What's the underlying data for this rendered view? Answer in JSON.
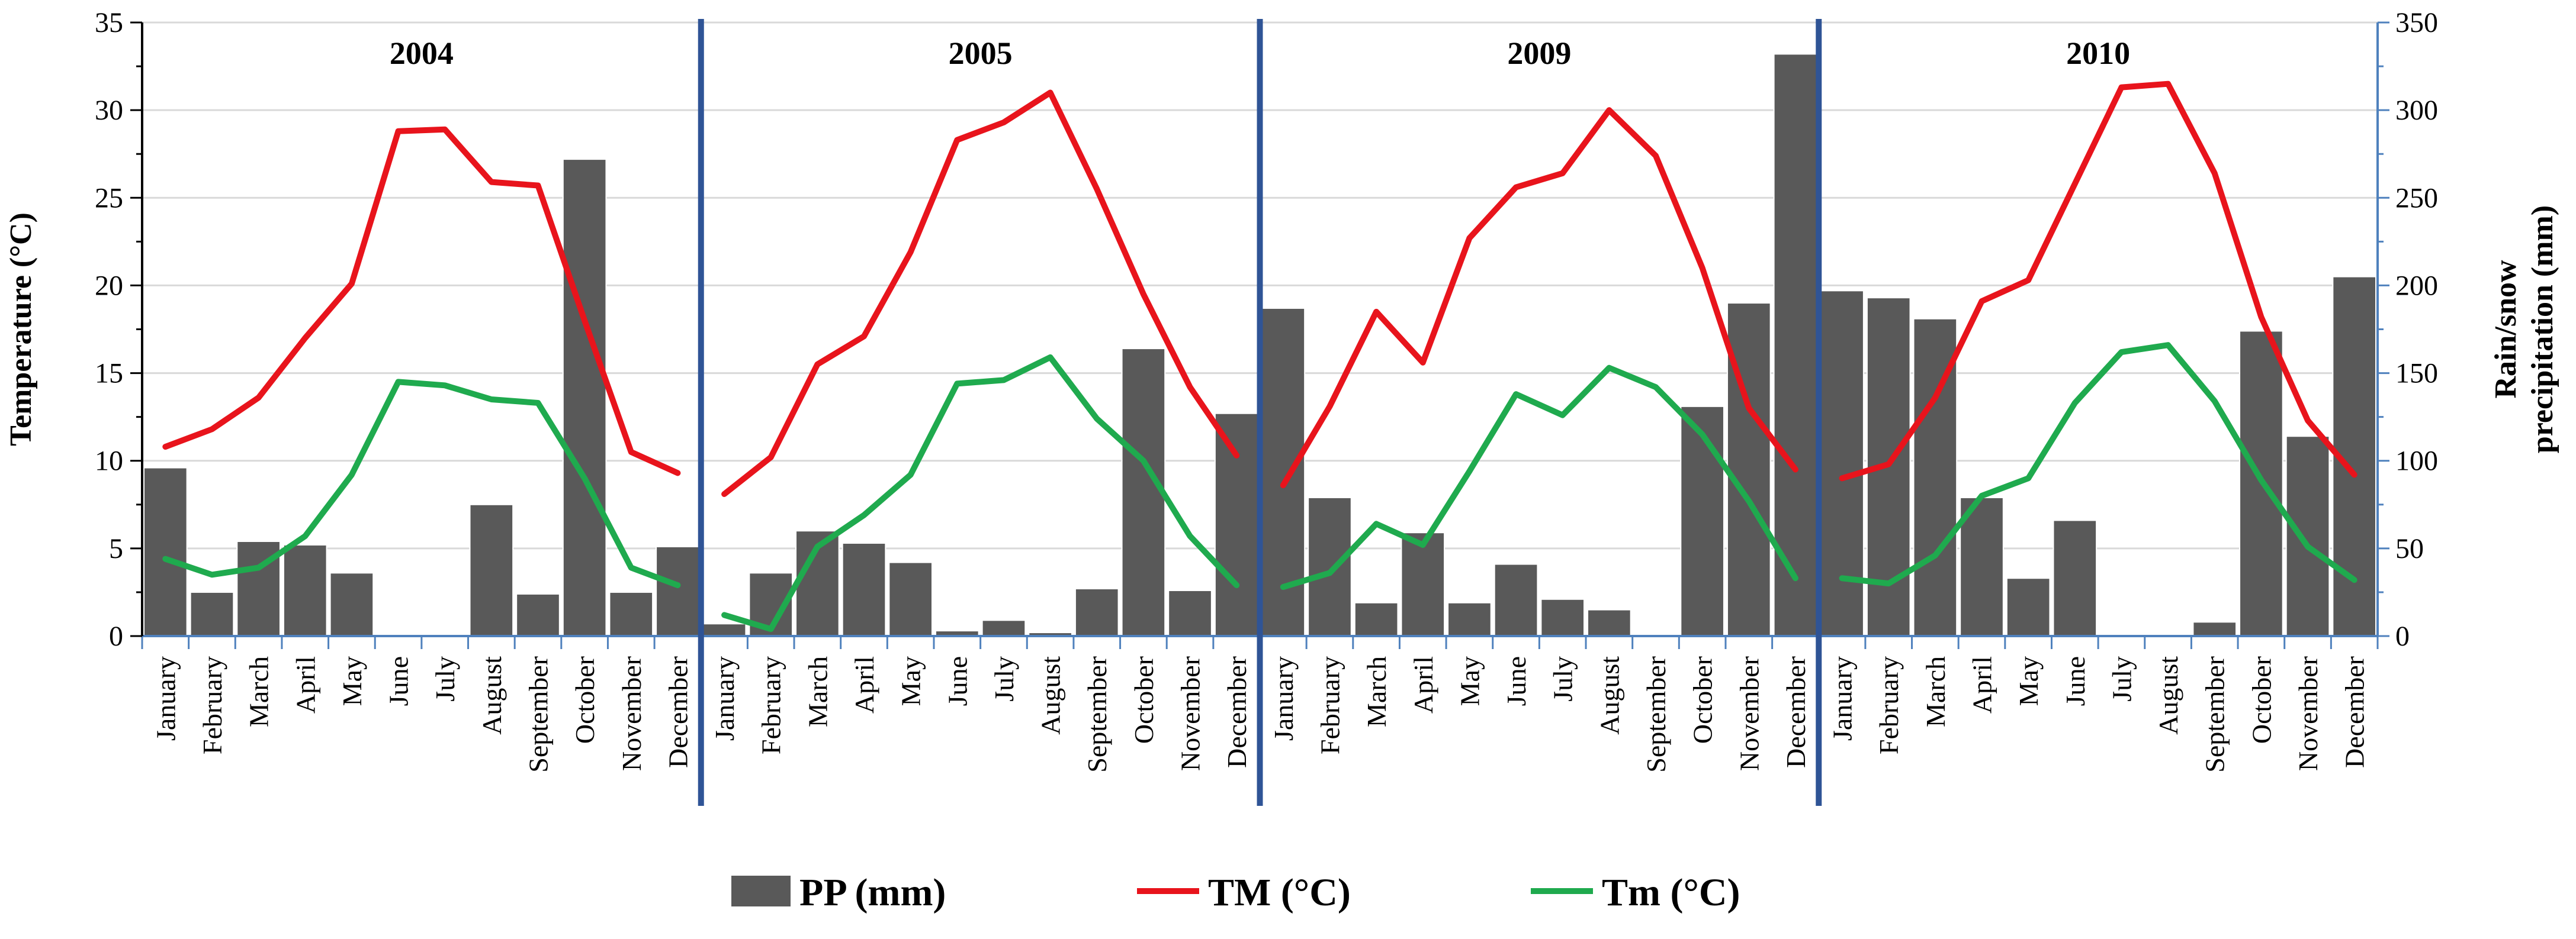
{
  "chart_data": {
    "type": "bar+line",
    "months": [
      "January",
      "February",
      "March",
      "April",
      "May",
      "June",
      "July",
      "August",
      "September",
      "October",
      "November",
      "December"
    ],
    "left_axis": {
      "label": "Temperature (°C)",
      "range": [
        0,
        35
      ],
      "ticks": [
        "0",
        "5",
        "10",
        "15",
        "20",
        "25",
        "30",
        "35"
      ]
    },
    "right_axis": {
      "label_line1": "Rain/snow",
      "label_line2": "precipitation (mm)",
      "range": [
        0,
        350
      ],
      "ticks": [
        "0",
        "50",
        "100",
        "150",
        "200",
        "250",
        "300",
        "350"
      ]
    },
    "legend": {
      "pp": "PP (mm)",
      "tmax": "TM (°C)",
      "tmin": "Tm (°C)"
    },
    "colors": {
      "pp": "#595959",
      "tmax": "#e8141c",
      "tmin": "#1faa4e",
      "axis": "#4f81bd",
      "separator": "#2f5496",
      "grid": "#d9d9d9"
    },
    "panels": [
      {
        "year": "2004",
        "pp_mm": [
          96,
          25,
          54,
          52,
          36,
          0,
          0,
          75,
          24,
          272,
          25,
          51
        ],
        "tmax_c": [
          10.8,
          11.8,
          13.6,
          17.0,
          20.1,
          28.8,
          28.9,
          25.9,
          25.7,
          18.0,
          10.5,
          9.3
        ],
        "tmin_c": [
          4.4,
          3.5,
          3.9,
          5.7,
          9.2,
          14.5,
          14.3,
          13.5,
          13.3,
          9.0,
          3.9,
          2.9
        ]
      },
      {
        "year": "2005",
        "pp_mm": [
          7,
          36,
          60,
          53,
          42,
          3,
          9,
          2,
          27,
          164,
          26,
          127
        ],
        "tmax_c": [
          8.1,
          10.2,
          15.5,
          17.1,
          21.9,
          28.3,
          29.3,
          31.0,
          25.5,
          19.5,
          14.2,
          10.3
        ],
        "tmin_c": [
          1.2,
          0.4,
          5.1,
          6.9,
          9.2,
          14.4,
          14.6,
          15.9,
          12.4,
          10.0,
          5.7,
          2.9
        ]
      },
      {
        "year": "2009",
        "pp_mm": [
          187,
          79,
          19,
          59,
          19,
          41,
          21,
          15,
          0,
          131,
          190,
          332
        ],
        "tmax_c": [
          8.6,
          13.1,
          18.5,
          15.6,
          22.7,
          25.6,
          26.4,
          30.0,
          27.4,
          21.0,
          13.0,
          9.5
        ],
        "tmin_c": [
          2.8,
          3.6,
          6.4,
          5.2,
          9.4,
          13.8,
          12.6,
          15.3,
          14.2,
          11.5,
          7.7,
          3.3
        ]
      },
      {
        "year": "2010",
        "pp_mm": [
          197,
          193,
          181,
          79,
          33,
          66,
          0,
          0,
          8,
          174,
          114,
          205
        ],
        "tmax_c": [
          9.0,
          9.8,
          13.6,
          19.1,
          20.3,
          25.8,
          31.3,
          31.5,
          26.4,
          18.2,
          12.3,
          9.2
        ],
        "tmin_c": [
          3.3,
          3.0,
          4.6,
          8.0,
          9.0,
          13.3,
          16.2,
          16.6,
          13.4,
          8.9,
          5.1,
          3.2
        ]
      }
    ]
  }
}
